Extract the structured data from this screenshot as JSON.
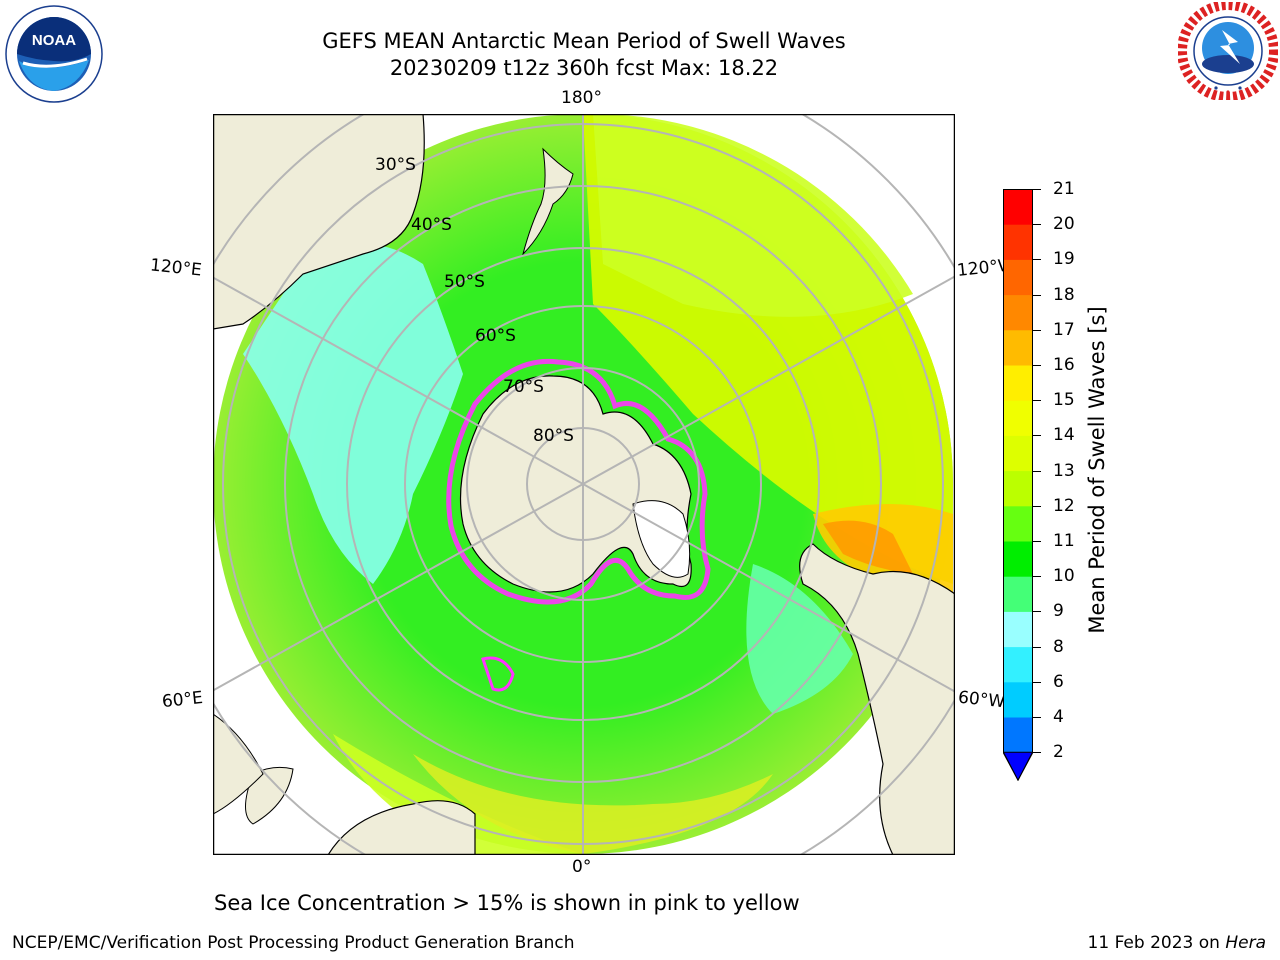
{
  "header": {
    "title_line1": "GEFS MEAN Antarctic Mean Period of Swell Waves",
    "title_line2": "20230209 t12z 360h fcst   Max: 18.22"
  },
  "logos": {
    "left": {
      "icon": "noaa-logo-icon",
      "text": "NOAA",
      "ring_text": "NATIONAL OCEANIC AND ATMOSPHERIC ADMINISTRATION · U.S. DEPARTMENT OF COMMERCE"
    },
    "right": {
      "icon": "nws-logo-icon",
      "ring_text": "NATIONAL WEATHER SERVICE"
    }
  },
  "map": {
    "projection": "south-polar-stereographic",
    "lat_labels": [
      "30°S",
      "40°S",
      "50°S",
      "60°S",
      "70°S",
      "80°S"
    ],
    "lon_labels": {
      "top": "180°",
      "bottom": "0°",
      "upper_left": "120°E",
      "lower_left": "60°E",
      "upper_right": "120°W",
      "lower_right": "60°W"
    },
    "colors": {
      "land": "#efedd9",
      "grid": "#b5b5b5",
      "sea_ice": "#ff33ff",
      "ocean_dominant": "#33ee22"
    }
  },
  "colorbar": {
    "label": "Mean Period of Swell Waves [s]",
    "ticks": [
      "2",
      "4",
      "6",
      "8",
      "9",
      "10",
      "11",
      "12",
      "13",
      "14",
      "15",
      "16",
      "17",
      "18",
      "19",
      "20",
      "21"
    ],
    "colors": [
      "#0077ff",
      "#00ccff",
      "#33f0ff",
      "#99ffff",
      "#44ff77",
      "#00ee00",
      "#66ff11",
      "#bbff00",
      "#ddff00",
      "#f0ff00",
      "#ffee00",
      "#ffbb00",
      "#ff8800",
      "#ff6600",
      "#ff3300",
      "#ff0000"
    ],
    "extend_below_color": "#0000ff"
  },
  "note": "Sea Ice Concentration > 15% is shown in pink to yellow",
  "footer": {
    "left": "NCEP/EMC/Verification Post Processing Product Generation Branch",
    "right_date": "11 Feb 2023 on ",
    "right_machine": "Hera"
  }
}
